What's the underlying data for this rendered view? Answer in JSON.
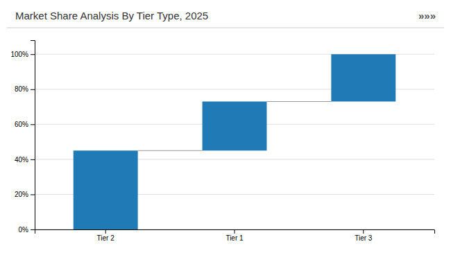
{
  "chart_data": {
    "type": "waterfall",
    "title": "Market Share Analysis By Tier Type, 2025",
    "annotations": [
      "»»»"
    ],
    "categories": [
      "Tier 2",
      "Tier 1",
      "Tier 3"
    ],
    "values": [
      45,
      28,
      27
    ],
    "color": "#1f7ab5",
    "ylim": [
      0,
      108
    ],
    "yticks": [
      {
        "value": 0,
        "label": "0%"
      },
      {
        "value": 20,
        "label": "20%"
      },
      {
        "value": 40,
        "label": "40%"
      },
      {
        "value": 60,
        "label": "60%"
      },
      {
        "value": 80,
        "label": "80%"
      },
      {
        "value": 100,
        "label": "100%"
      }
    ],
    "grid": true
  }
}
